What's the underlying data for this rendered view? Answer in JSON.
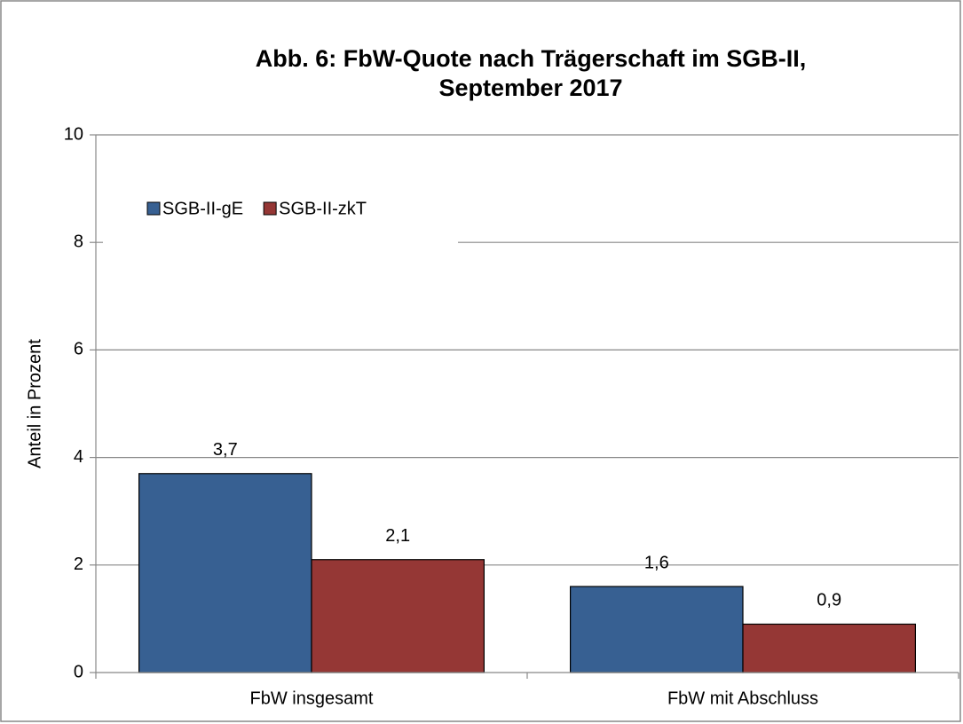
{
  "chart_data": {
    "type": "bar",
    "title": "Abb. 6: FbW-Quote nach Trägerschaft im SGB-II,",
    "subtitle": "September 2017",
    "y_label": "Anteil in Prozent",
    "categories": [
      "FbW insgesamt",
      "FbW mit Abschluss"
    ],
    "series": [
      {
        "name": "SGB-II-gE",
        "color": "#376092",
        "values": [
          3.7,
          1.6
        ],
        "value_labels": [
          "3,7",
          "1,6"
        ]
      },
      {
        "name": "SGB-II-zkT",
        "color": "#953735",
        "values": [
          2.1,
          0.9
        ],
        "value_labels": [
          "2,1",
          "0,9"
        ]
      }
    ],
    "ylim": [
      0,
      10
    ],
    "yticks": [
      0,
      2,
      4,
      6,
      8,
      10
    ],
    "grid": true,
    "legend": "upper left"
  }
}
